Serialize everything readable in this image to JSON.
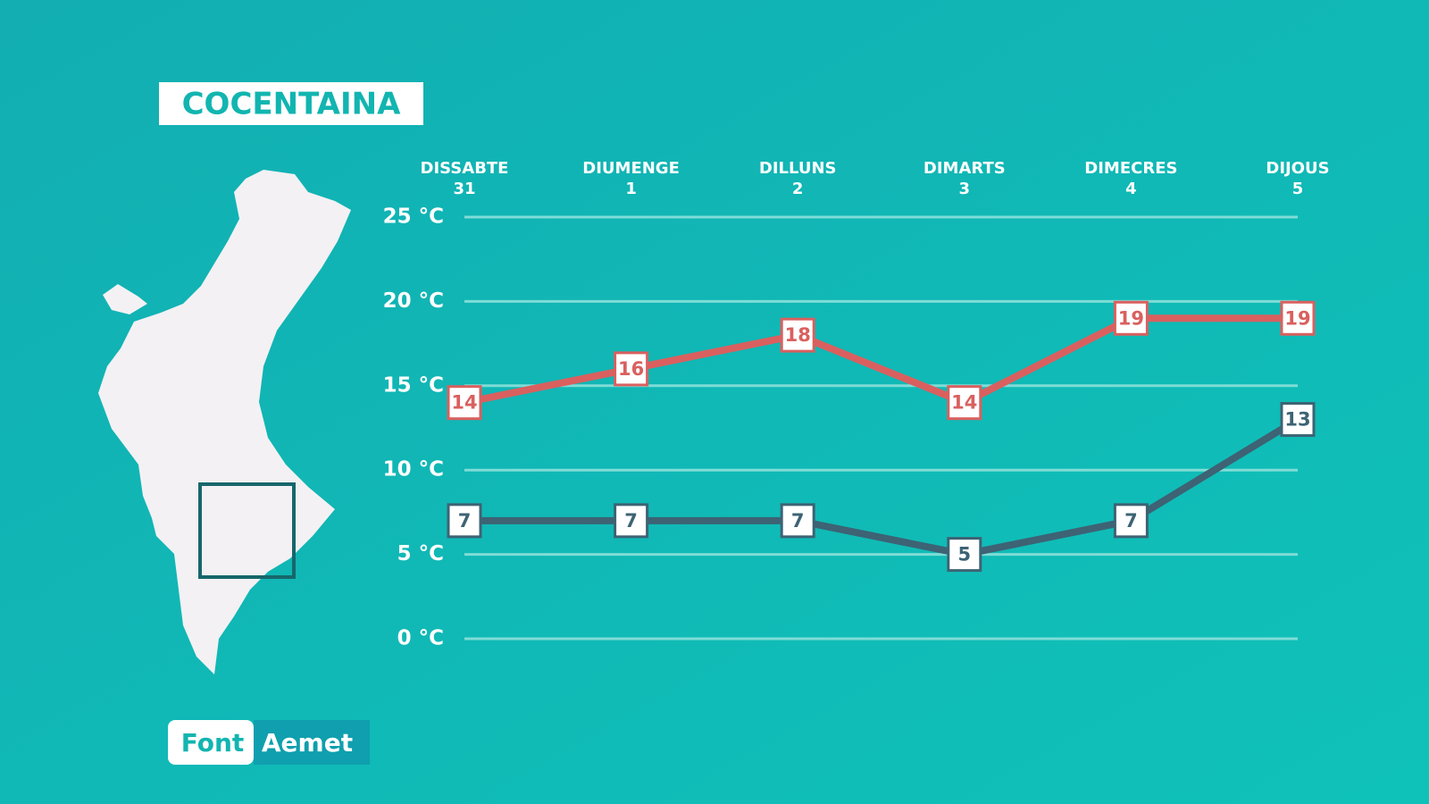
{
  "chart_data": {
    "type": "line",
    "title": "COCENTAINA",
    "categories": [
      "DISSABTE",
      "DIUMENGE",
      "DILLUNS",
      "DIMARTS",
      "DIMECRES",
      "DIJOUS"
    ],
    "category_dates": [
      "31",
      "1",
      "2",
      "3",
      "4",
      "5"
    ],
    "series": [
      {
        "color": "#d9605f",
        "values": [
          14,
          16,
          18,
          14,
          19,
          19
        ]
      },
      {
        "color": "#3d6374",
        "values": [
          7,
          7,
          7,
          5,
          7,
          13
        ]
      }
    ],
    "ylim": [
      0,
      25
    ],
    "yticks": [
      {
        "value": 0,
        "label": "0 °C"
      },
      {
        "value": 5,
        "label": "5 °C"
      },
      {
        "value": 10,
        "label": "10 °C"
      },
      {
        "value": 15,
        "label": "15 °C"
      },
      {
        "value": 20,
        "label": "20 °C"
      },
      {
        "value": 25,
        "label": "25 °C"
      }
    ],
    "grid": true,
    "source": {
      "label": "Font",
      "name": "Aemet"
    }
  }
}
